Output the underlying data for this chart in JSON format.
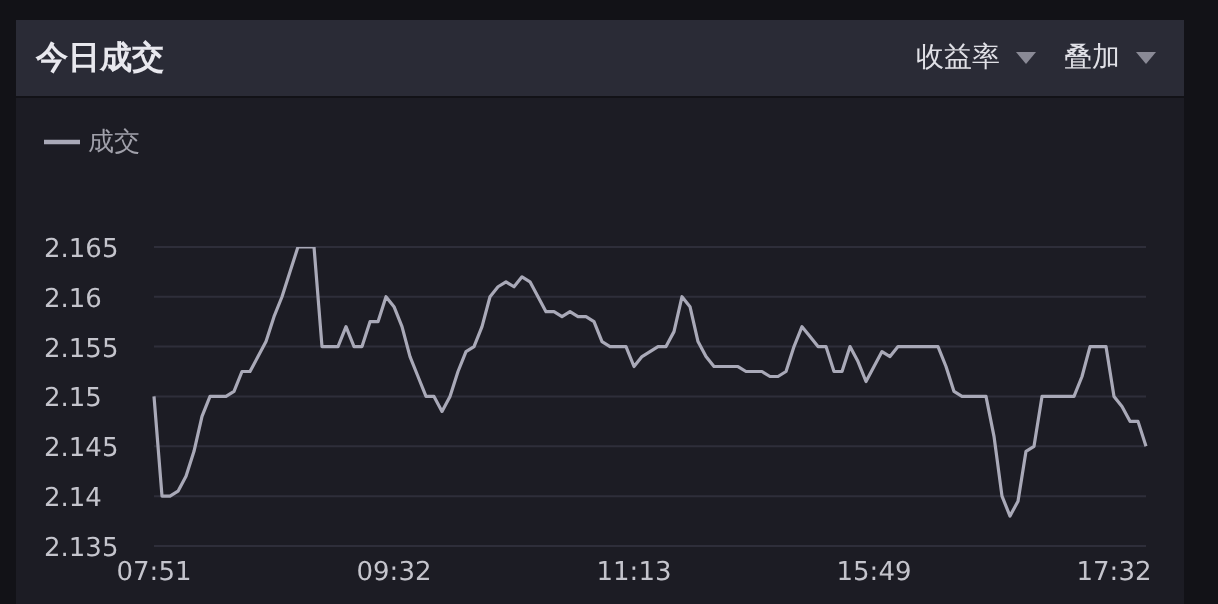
{
  "chart_data": {
    "type": "line",
    "title": "今日成交",
    "annotations": [
      "收益率",
      "叠加"
    ],
    "categories": [
      "07:51",
      null,
      null,
      null,
      null,
      null,
      null,
      null,
      null,
      null,
      null,
      null,
      null,
      null,
      null,
      null,
      null,
      null,
      null,
      null,
      null,
      null,
      null,
      null,
      null,
      null,
      null,
      null,
      null,
      null,
      "09:32",
      null,
      null,
      null,
      null,
      null,
      null,
      null,
      null,
      null,
      null,
      null,
      null,
      null,
      null,
      null,
      null,
      null,
      null,
      null,
      null,
      null,
      null,
      null,
      null,
      null,
      null,
      null,
      null,
      null,
      "11:13",
      null,
      null,
      null,
      null,
      null,
      null,
      null,
      null,
      null,
      null,
      null,
      null,
      null,
      null,
      null,
      null,
      null,
      null,
      null,
      null,
      null,
      null,
      null,
      null,
      null,
      null,
      null,
      null,
      null,
      "15:49",
      null,
      null,
      null,
      null,
      null,
      null,
      null,
      null,
      null,
      null,
      null,
      null,
      null,
      null,
      null,
      null,
      null,
      null,
      null,
      null,
      null,
      null,
      null,
      null,
      null,
      null,
      null,
      null,
      null,
      "17:32",
      null,
      null,
      null,
      null
    ],
    "series": [
      {
        "name": "成交",
        "color": "#a9a9b8",
        "values": [
          2.15,
          2.14,
          2.14,
          2.1405,
          2.142,
          2.1445,
          2.148,
          2.15,
          2.15,
          2.15,
          2.1505,
          2.1525,
          2.1525,
          2.154,
          2.1555,
          2.158,
          2.16,
          2.1625,
          2.165,
          2.165,
          2.165,
          2.155,
          2.155,
          2.155,
          2.157,
          2.155,
          2.155,
          2.1575,
          2.1575,
          2.16,
          2.159,
          2.157,
          2.154,
          2.152,
          2.15,
          2.15,
          2.1485,
          2.15,
          2.1525,
          2.1545,
          2.155,
          2.157,
          2.16,
          2.161,
          2.1615,
          2.161,
          2.162,
          2.1615,
          2.16,
          2.1585,
          2.1585,
          2.158,
          2.1585,
          2.158,
          2.158,
          2.1575,
          2.1555,
          2.155,
          2.155,
          2.155,
          2.153,
          2.154,
          2.1545,
          2.155,
          2.155,
          2.1565,
          2.16,
          2.159,
          2.1555,
          2.154,
          2.153,
          2.153,
          2.153,
          2.153,
          2.1525,
          2.1525,
          2.1525,
          2.152,
          2.152,
          2.1525,
          2.155,
          2.157,
          2.156,
          2.155,
          2.155,
          2.1525,
          2.1525,
          2.155,
          2.1535,
          2.1515,
          2.153,
          2.1545,
          2.154,
          2.155,
          2.155,
          2.155,
          2.155,
          2.155,
          2.155,
          2.153,
          2.1505,
          2.15,
          2.15,
          2.15,
          2.15,
          2.146,
          2.14,
          2.138,
          2.1395,
          2.1445,
          2.145,
          2.15,
          2.15,
          2.15,
          2.15,
          2.15,
          2.152,
          2.155,
          2.155,
          2.155,
          2.15,
          2.149,
          2.1475,
          2.1475,
          2.145
        ]
      }
    ],
    "ylim": [
      2.135,
      2.165
    ],
    "yticks": [
      2.135,
      2.14,
      2.145,
      2.15,
      2.155,
      2.16,
      2.165
    ],
    "grid": "y",
    "legend": "top left"
  }
}
